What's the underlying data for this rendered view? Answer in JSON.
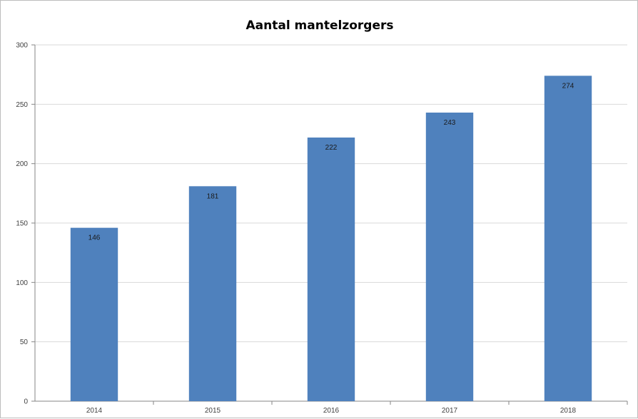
{
  "chart_data": {
    "type": "bar",
    "title": "Aantal mantelzorgers",
    "xlabel": "",
    "ylabel": "",
    "categories": [
      "2014",
      "2015",
      "2016",
      "2017",
      "2018"
    ],
    "values": [
      146,
      181,
      222,
      243,
      274
    ],
    "ylim": [
      0,
      300
    ],
    "yticks": [
      "0",
      "50",
      "100",
      "150",
      "200",
      "250",
      "300"
    ],
    "data_labels": [
      "146",
      "181",
      "222",
      "243",
      "274"
    ],
    "grid": true,
    "legend": "none",
    "colors": {
      "bar": "#4f81bd",
      "grid": "#d9d9d9",
      "axis": "#868686"
    }
  }
}
